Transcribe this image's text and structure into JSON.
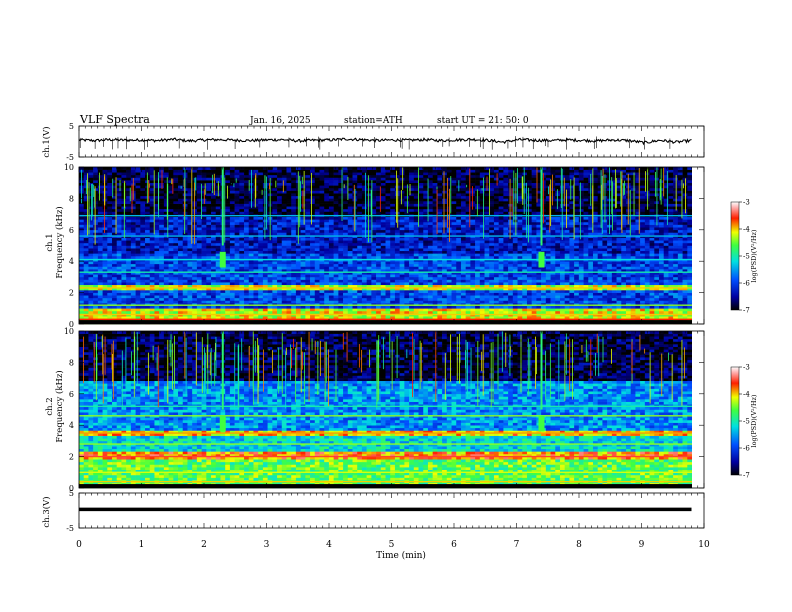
{
  "header": {
    "title": "VLF  Spectra",
    "date": "Jan. 16, 2025",
    "station": "station=ATH",
    "start": "start  UT  =   21: 50: 0"
  },
  "chart_data": [
    {
      "type": "line",
      "panel": "ch1-voltage",
      "ylabel": "ch.1(V)",
      "yticks": [
        "5",
        "-5"
      ],
      "ylim": [
        -5,
        5
      ],
      "xlim": [
        0,
        10
      ],
      "series": [
        {
          "values": [
            0.5,
            0.3,
            0.6,
            0.4,
            0.5,
            0.3,
            0.7,
            0.2,
            0.5,
            0.6,
            0.4,
            0.3,
            0.5,
            0.6,
            0.2,
            0.4,
            0.5,
            0.8,
            0.6,
            0.3,
            0.5,
            0.4,
            0.6,
            0.3,
            0.5,
            0.7,
            0.4,
            -0.2,
            0.6,
            0.4,
            0.3,
            0.5,
            0.4,
            0.2,
            0.5,
            0.3,
            -0.4,
            0.4,
            -0.2,
            0.3
          ]
        }
      ]
    },
    {
      "type": "heatmap",
      "panel": "ch1-spectrogram",
      "ylabel": "ch.1\nFrequency (kHz)",
      "yticks": [
        "0",
        "2",
        "4",
        "6",
        "8",
        "10"
      ],
      "ylim": [
        0,
        10
      ],
      "xlim": [
        0,
        10
      ],
      "colorbar": {
        "label": "log(PSD)(V²/Hz)",
        "ticks": [
          "-3",
          "-4",
          "-5",
          "-6",
          "-7"
        ],
        "range": [
          -7,
          -3
        ]
      },
      "bands": [
        {
          "f_low": 0.0,
          "f_high": 1.0,
          "level": -4.2
        },
        {
          "f_low": 1.0,
          "f_high": 2.2,
          "level": -6.0
        },
        {
          "f_low": 2.2,
          "f_high": 2.5,
          "level": -4.3
        },
        {
          "f_low": 2.5,
          "f_high": 4.5,
          "level": -6.0
        },
        {
          "f_low": 4.5,
          "f_high": 6.8,
          "level": -6.3
        },
        {
          "f_low": 6.8,
          "f_high": 10.0,
          "level": -6.8
        }
      ],
      "bursts_min": [
        2.3,
        7.4
      ]
    },
    {
      "type": "heatmap",
      "panel": "ch2-spectrogram",
      "ylabel": "ch.2\nFrequency (kHz)",
      "yticks": [
        "0",
        "2",
        "4",
        "6",
        "8",
        "10"
      ],
      "ylim": [
        0,
        10
      ],
      "xlim": [
        0,
        10
      ],
      "colorbar": {
        "label": "log(PSD)(V²/Hz)",
        "ticks": [
          "-3",
          "-4",
          "-5",
          "-6",
          "-7"
        ],
        "range": [
          -7,
          -3
        ]
      },
      "bands": [
        {
          "f_low": 0.0,
          "f_high": 1.8,
          "level": -4.6
        },
        {
          "f_low": 1.8,
          "f_high": 2.3,
          "level": -3.8
        },
        {
          "f_low": 2.3,
          "f_high": 3.4,
          "level": -5.2
        },
        {
          "f_low": 3.4,
          "f_high": 3.7,
          "level": -4.0
        },
        {
          "f_low": 3.7,
          "f_high": 6.8,
          "level": -5.6
        },
        {
          "f_low": 6.8,
          "f_high": 10.0,
          "level": -6.8
        }
      ],
      "bursts_min": [
        2.3,
        7.4
      ]
    },
    {
      "type": "line",
      "panel": "ch3-voltage",
      "ylabel": "ch.3(V)",
      "xlabel": "Time  (min)",
      "yticks": [
        "5",
        "-5"
      ],
      "xticks": [
        "0",
        "1",
        "2",
        "3",
        "4",
        "5",
        "6",
        "7",
        "8",
        "9",
        "10"
      ],
      "ylim": [
        -5,
        5
      ],
      "xlim": [
        0,
        10
      ],
      "series": [
        {
          "values": [
            0.3,
            0.3,
            0.3,
            0.3,
            0.3,
            0.3,
            0.3,
            0.3,
            0.3,
            0.3,
            0.3
          ]
        }
      ]
    }
  ]
}
